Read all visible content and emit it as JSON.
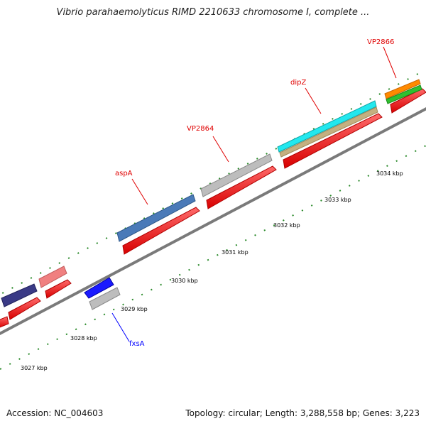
{
  "title": "Vibrio parahaemolyticus RIMD 2210633 chromosome I, complete ...",
  "footer": {
    "accession": "Accession: NC_004603",
    "stats": "Topology: circular; Length: 3,288,558 bp; Genes: 3,223"
  },
  "ticks": [
    "3027 kbp",
    "3028 kbp",
    "3029 kbp",
    "3030 kbp",
    "3031 kbp",
    "3032 kbp",
    "3033 kbp",
    "3034 kbp"
  ],
  "genes": {
    "fxsA": {
      "label": "fxsA",
      "color": "#0000ff"
    },
    "aspA": {
      "label": "aspA",
      "color": "#e00000"
    },
    "VP2864": {
      "label": "VP2864",
      "color": "#e00000"
    },
    "dipZ": {
      "label": "dipZ",
      "color": "#e00000"
    },
    "VP2866": {
      "label": "VP2866",
      "color": "#e00000"
    }
  },
  "colors": {
    "backbone": "#8a8a8a",
    "tick": "#2a8a2a",
    "cds": "#ff1414",
    "steelblue": "#4a7ab8",
    "grey": "#bdbdbd",
    "navy": "#3a3a86",
    "pink": "#f08080",
    "blue": "#1a1aff",
    "cyan": "#22e8ee",
    "tan": "#c4b080",
    "orange": "#ff8a00",
    "green": "#30c030"
  }
}
